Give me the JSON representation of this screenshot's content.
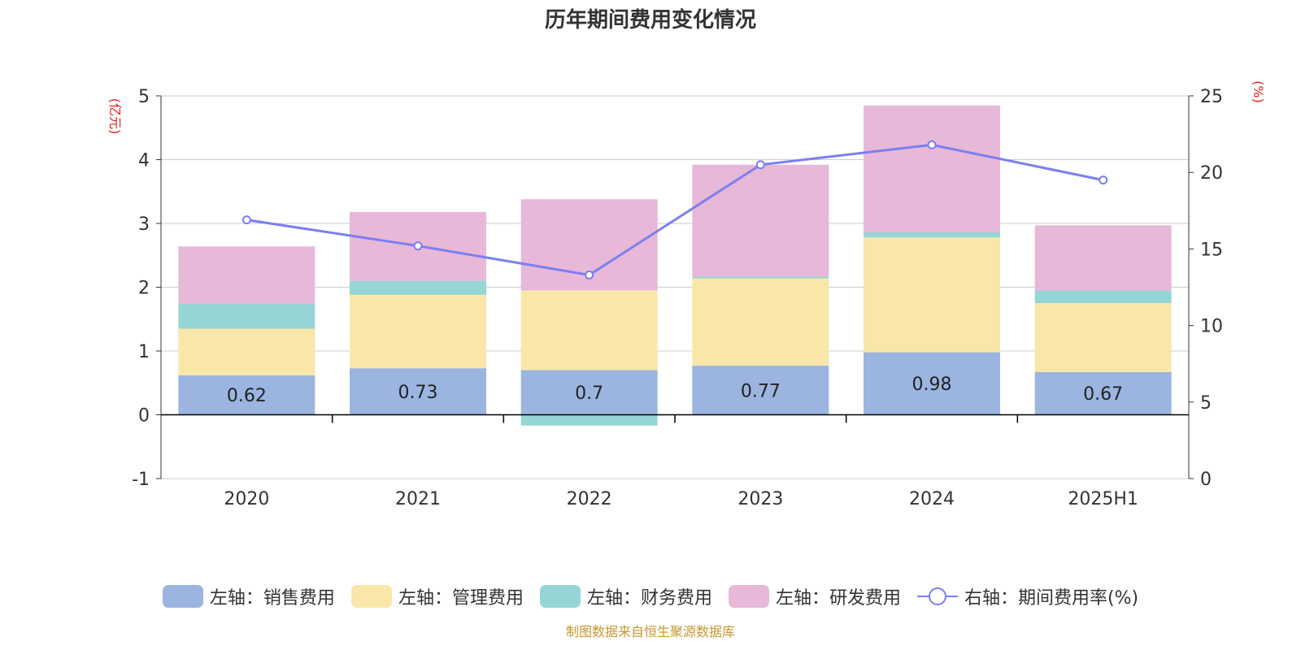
{
  "chart_data": {
    "type": "bar",
    "title": "历年期间费用变化情况",
    "categories": [
      "2020",
      "2021",
      "2022",
      "2023",
      "2024",
      "2025H1"
    ],
    "left_axis": {
      "unit_label": "(亿元)",
      "ylim": [
        -1,
        5
      ],
      "ticks": [
        "5",
        "4",
        "3",
        "2",
        "1",
        "0",
        "-1"
      ]
    },
    "right_axis": {
      "unit_label": "(%)",
      "ylim": [
        0,
        25
      ],
      "ticks": [
        "25",
        "20",
        "15",
        "10",
        "5",
        "0"
      ]
    },
    "series": [
      {
        "name": "左轴：销售费用",
        "axis": "left",
        "color": "#9bb5e0",
        "values": [
          0.62,
          0.73,
          0.7,
          0.77,
          0.98,
          0.67
        ],
        "labels": [
          "0.62",
          "0.73",
          "0.7",
          "0.77",
          "0.98",
          "0.67"
        ]
      },
      {
        "name": "左轴：管理费用",
        "axis": "left",
        "color": "#f8e7a8",
        "values": [
          0.73,
          1.15,
          1.25,
          1.37,
          1.8,
          1.08
        ]
      },
      {
        "name": "左轴：财务费用",
        "axis": "left",
        "color": "#96d5d6",
        "values": [
          0.39,
          0.22,
          -0.17,
          0.03,
          0.08,
          0.2
        ]
      },
      {
        "name": "左轴：研发费用",
        "axis": "left",
        "color": "#e8b8d8",
        "values": [
          0.9,
          1.08,
          1.43,
          1.75,
          1.99,
          1.02
        ]
      },
      {
        "name": "右轴：期间费用率(%)",
        "axis": "right",
        "type": "line",
        "color": "#7b7ff0",
        "values": [
          16.9,
          15.2,
          13.3,
          20.5,
          21.8,
          19.5
        ]
      }
    ],
    "grid": true,
    "legend": "bottom"
  },
  "source": "制图数据来自恒生聚源数据库"
}
